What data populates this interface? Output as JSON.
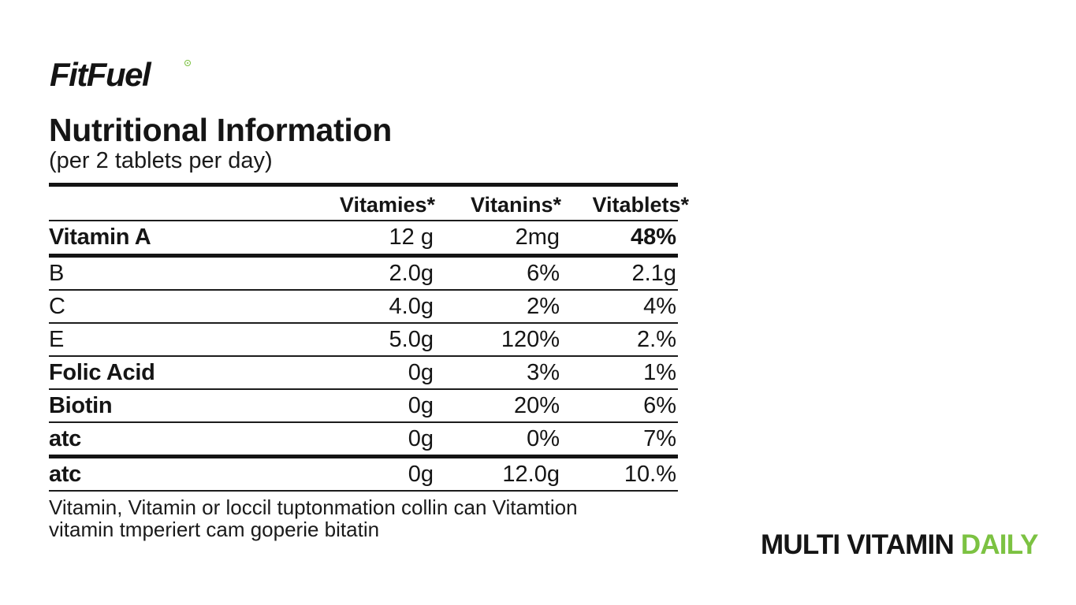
{
  "brand": {
    "name": "FitFuel",
    "accent_color": "#7cc242"
  },
  "heading": {
    "title": "Nutritional Information",
    "subtitle": "(per 2 tablets per day)"
  },
  "table": {
    "columns": [
      "Vitamies*",
      "Vitanins*",
      "Vitablets*"
    ],
    "rows": [
      {
        "label": "Vitamin A",
        "values": [
          "12 g",
          "2mg",
          "48%"
        ]
      },
      {
        "label": "B",
        "values": [
          "2.0g",
          "6%",
          "2.1g"
        ]
      },
      {
        "label": "C",
        "values": [
          "4.0g",
          "2%",
          "4%"
        ]
      },
      {
        "label": "E",
        "values": [
          "5.0g",
          "120%",
          "2.%"
        ]
      },
      {
        "label": "Folic Acid",
        "values": [
          "0g",
          "3%",
          "1%"
        ]
      },
      {
        "label": "Biotin",
        "values": [
          "0g",
          "20%",
          "6%"
        ]
      },
      {
        "label": "atc",
        "values": [
          "0g",
          "0%",
          "7%"
        ]
      },
      {
        "label": "atc",
        "values": [
          "0g",
          "12.0g",
          "10.%"
        ]
      }
    ]
  },
  "footnote": {
    "line1": "Vitamin, Vitamin or loccil tuptonmation collin can Vitamtion",
    "line2": "vitamin tmperiert cam goperie bitatin"
  },
  "tagline": {
    "main": "MULTI VITAMIN ",
    "accent": "DAILY"
  }
}
